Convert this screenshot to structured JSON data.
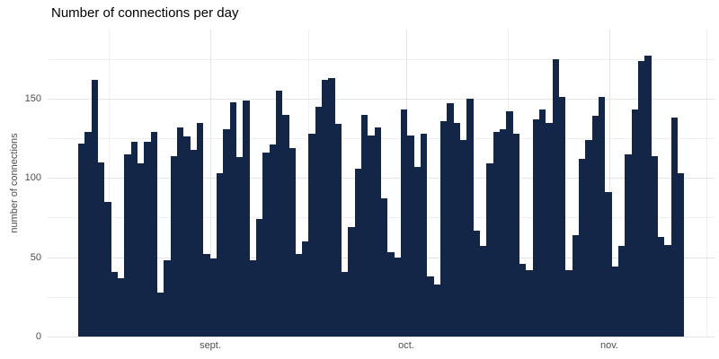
{
  "title": "Number of connections per day",
  "y_axis_title": "number of connections",
  "colors": {
    "bar": "#132648",
    "grid_major": "#e4e4e4",
    "grid_minor": "#efefef",
    "title_text": "#000000",
    "axis_text": "#4d4d4d",
    "background": "#ffffff"
  },
  "chart_data": {
    "type": "bar",
    "title": "Number of connections per day",
    "xlabel": "",
    "ylabel": "number of connections",
    "x_unit": "day",
    "x_tick_labels": [
      "sept.",
      "oct.",
      "nov."
    ],
    "y_tick_labels": [
      "0",
      "50",
      "100",
      "150"
    ],
    "y_ticks": [
      0,
      50,
      100,
      150
    ],
    "ylim": [
      0,
      193
    ],
    "grid": "on",
    "legend": "none",
    "values": [
      122,
      129,
      162,
      110,
      85,
      41,
      37,
      115,
      123,
      109,
      123,
      129,
      28,
      48,
      114,
      132,
      126,
      118,
      135,
      52,
      49,
      103,
      131,
      148,
      113,
      149,
      48,
      74,
      116,
      121,
      155,
      140,
      119,
      52,
      60,
      128,
      145,
      162,
      163,
      134,
      41,
      69,
      106,
      140,
      127,
      132,
      87,
      53,
      50,
      143,
      127,
      107,
      128,
      38,
      33,
      136,
      147,
      135,
      124,
      150,
      67,
      57,
      109,
      129,
      131,
      142,
      128,
      46,
      42,
      137,
      143,
      135,
      175,
      151,
      42,
      64,
      112,
      124,
      139,
      151,
      91,
      44,
      57,
      115,
      143,
      174,
      177,
      114,
      63,
      58,
      138,
      103
    ]
  }
}
